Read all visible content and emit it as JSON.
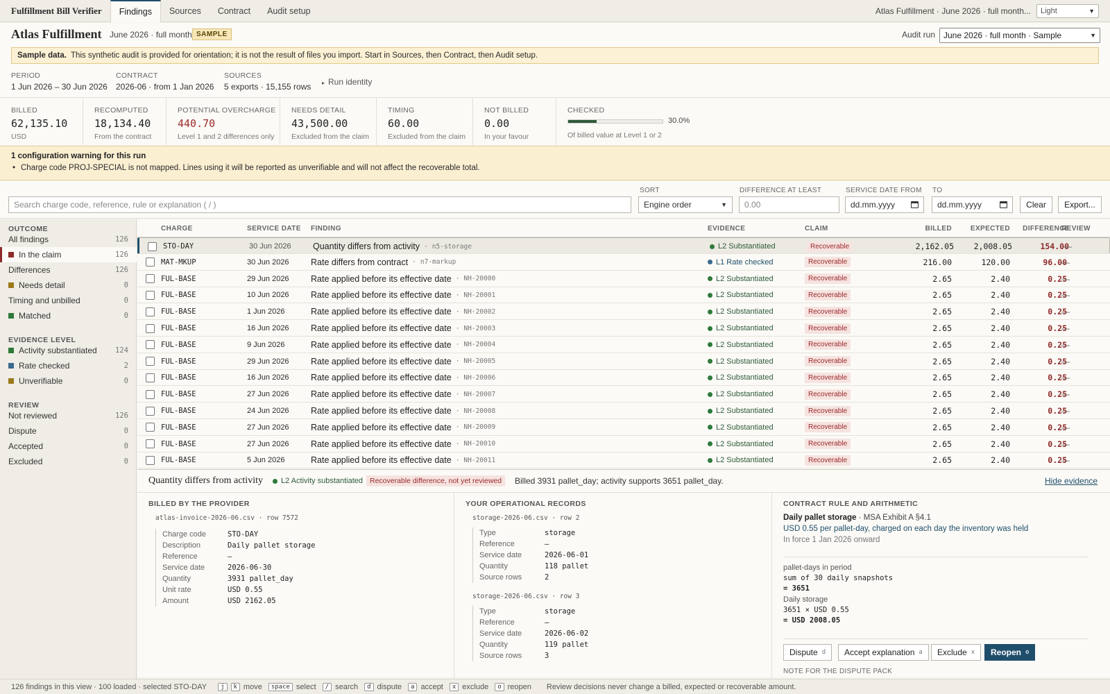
{
  "app": {
    "title": "Fulfillment Bill Verifier"
  },
  "nav": {
    "tabs": [
      "Findings",
      "Sources",
      "Contract",
      "Audit setup"
    ],
    "active": 0,
    "context": "Atlas Fulfillment · June 2026 · full month...",
    "theme": "Light"
  },
  "header": {
    "company": "Atlas Fulfillment",
    "period_short": "June 2026 · full month",
    "badge": "SAMPLE",
    "audit_run_label": "Audit run",
    "audit_run_value": "June 2026 · full month · Sample",
    "banner_bold": "Sample data.",
    "banner_text": "This synthetic audit is provided for orientation; it is not the result of files you import. Start in Sources, then Contract, then Audit setup.",
    "meta": [
      {
        "label": "PERIOD",
        "value": "1 Jun 2026 – 30 Jun 2026"
      },
      {
        "label": "CONTRACT",
        "value": "2026-06 · from 1 Jan 2026"
      },
      {
        "label": "SOURCES",
        "value": "5 exports · 15,155 rows"
      }
    ],
    "run_identity": "Run identity"
  },
  "kpis": [
    {
      "label": "BILLED",
      "value": "62,135.10",
      "sub": "USD"
    },
    {
      "label": "RECOMPUTED",
      "value": "18,134.40",
      "sub": "From the contract"
    },
    {
      "label": "POTENTIAL OVERCHARGE",
      "value": "440.70",
      "sub": "Level 1 and 2 differences only"
    },
    {
      "label": "NEEDS DETAIL",
      "value": "43,500.00",
      "sub": "Excluded from the claim"
    },
    {
      "label": "TIMING",
      "value": "60.00",
      "sub": "Excluded from the claim"
    },
    {
      "label": "NOT BILLED",
      "value": "0.00",
      "sub": "In your favour"
    },
    {
      "label": "CHECKED",
      "value": "30.0%",
      "sub": "Of billed value at Level 1 or 2",
      "fraction": 0.3
    }
  ],
  "warning": {
    "title": "1 configuration warning for this run",
    "item": "Charge code PROJ-SPECIAL is not mapped. Lines using it will be reported as unverifiable and will not affect the recoverable total."
  },
  "filters": {
    "search_placeholder": "Search charge code, reference, rule or explanation  ( / )",
    "sort_label": "SORT",
    "sort_value": "Engine order",
    "diff_label": "DIFFERENCE AT LEAST",
    "diff_placeholder": "0.00",
    "from_label": "SERVICE DATE FROM",
    "from_placeholder": "dd.mm.yyyy",
    "to_label": "TO",
    "to_placeholder": "dd.mm.yyyy",
    "clear": "Clear",
    "export": "Export..."
  },
  "sidebar": {
    "outcome_title": "OUTCOME",
    "outcome": [
      {
        "label": "All findings",
        "count": "126",
        "swatch": ""
      },
      {
        "label": "In the claim",
        "count": "126",
        "swatch": "#8e2a2a"
      },
      {
        "label": "Differences",
        "count": "126",
        "swatch": ""
      },
      {
        "label": "Needs detail",
        "count": "0",
        "swatch": "#9a7a1a"
      },
      {
        "label": "Timing and unbilled",
        "count": "0",
        "swatch": ""
      },
      {
        "label": "Matched",
        "count": "0",
        "swatch": "#2e7a3a"
      }
    ],
    "evidence_title": "EVIDENCE LEVEL",
    "evidence": [
      {
        "label": "Activity substantiated",
        "count": "124",
        "swatch": "#2e7a3a"
      },
      {
        "label": "Rate checked",
        "count": "2",
        "swatch": "#3a6a8e"
      },
      {
        "label": "Unverifiable",
        "count": "0",
        "swatch": "#9a7a1a"
      }
    ],
    "review_title": "REVIEW",
    "review": [
      {
        "label": "Not reviewed",
        "count": "126"
      },
      {
        "label": "Dispute",
        "count": "0"
      },
      {
        "label": "Accepted",
        "count": "0"
      },
      {
        "label": "Excluded",
        "count": "0"
      }
    ]
  },
  "table": {
    "headers": [
      "CHARGE",
      "SERVICE DATE",
      "FINDING",
      "EVIDENCE",
      "CLAIM",
      "BILLED",
      "EXPECTED",
      "DIFFERENCE",
      "REVIEW"
    ],
    "rows": [
      {
        "charge": "STO-DAY",
        "date": "30 Jun 2026",
        "finding": "Quantity differs from activity",
        "ref": "n5-storage",
        "evidence": "L2 Substantiated",
        "level": "L2",
        "claim": "Recoverable",
        "billed": "2,162.05",
        "expected": "2,008.05",
        "diff": "154.00",
        "review": "—"
      },
      {
        "charge": "MAT-MKUP",
        "date": "30 Jun 2026",
        "finding": "Rate differs from contract",
        "ref": "n7-markup",
        "evidence": "L1 Rate checked",
        "level": "L1",
        "claim": "Recoverable",
        "billed": "216.00",
        "expected": "120.00",
        "diff": "96.00",
        "review": "—"
      },
      {
        "charge": "FUL-BASE",
        "date": "29 Jun 2026",
        "finding": "Rate applied before its effective date",
        "ref": "NH-20000",
        "evidence": "L2 Substantiated",
        "level": "L2",
        "claim": "Recoverable",
        "billed": "2.65",
        "expected": "2.40",
        "diff": "0.25",
        "review": "—"
      },
      {
        "charge": "FUL-BASE",
        "date": "10 Jun 2026",
        "finding": "Rate applied before its effective date",
        "ref": "NH-20001",
        "evidence": "L2 Substantiated",
        "level": "L2",
        "claim": "Recoverable",
        "billed": "2.65",
        "expected": "2.40",
        "diff": "0.25",
        "review": "—"
      },
      {
        "charge": "FUL-BASE",
        "date": "1 Jun 2026",
        "finding": "Rate applied before its effective date",
        "ref": "NH-20002",
        "evidence": "L2 Substantiated",
        "level": "L2",
        "claim": "Recoverable",
        "billed": "2.65",
        "expected": "2.40",
        "diff": "0.25",
        "review": "—"
      },
      {
        "charge": "FUL-BASE",
        "date": "16 Jun 2026",
        "finding": "Rate applied before its effective date",
        "ref": "NH-20003",
        "evidence": "L2 Substantiated",
        "level": "L2",
        "claim": "Recoverable",
        "billed": "2.65",
        "expected": "2.40",
        "diff": "0.25",
        "review": "—"
      },
      {
        "charge": "FUL-BASE",
        "date": "9 Jun 2026",
        "finding": "Rate applied before its effective date",
        "ref": "NH-20004",
        "evidence": "L2 Substantiated",
        "level": "L2",
        "claim": "Recoverable",
        "billed": "2.65",
        "expected": "2.40",
        "diff": "0.25",
        "review": "—"
      },
      {
        "charge": "FUL-BASE",
        "date": "29 Jun 2026",
        "finding": "Rate applied before its effective date",
        "ref": "NH-20005",
        "evidence": "L2 Substantiated",
        "level": "L2",
        "claim": "Recoverable",
        "billed": "2.65",
        "expected": "2.40",
        "diff": "0.25",
        "review": "—"
      },
      {
        "charge": "FUL-BASE",
        "date": "16 Jun 2026",
        "finding": "Rate applied before its effective date",
        "ref": "NH-20006",
        "evidence": "L2 Substantiated",
        "level": "L2",
        "claim": "Recoverable",
        "billed": "2.65",
        "expected": "2.40",
        "diff": "0.25",
        "review": "—"
      },
      {
        "charge": "FUL-BASE",
        "date": "27 Jun 2026",
        "finding": "Rate applied before its effective date",
        "ref": "NH-20007",
        "evidence": "L2 Substantiated",
        "level": "L2",
        "claim": "Recoverable",
        "billed": "2.65",
        "expected": "2.40",
        "diff": "0.25",
        "review": "—"
      },
      {
        "charge": "FUL-BASE",
        "date": "24 Jun 2026",
        "finding": "Rate applied before its effective date",
        "ref": "NH-20008",
        "evidence": "L2 Substantiated",
        "level": "L2",
        "claim": "Recoverable",
        "billed": "2.65",
        "expected": "2.40",
        "diff": "0.25",
        "review": "—"
      },
      {
        "charge": "FUL-BASE",
        "date": "27 Jun 2026",
        "finding": "Rate applied before its effective date",
        "ref": "NH-20009",
        "evidence": "L2 Substantiated",
        "level": "L2",
        "claim": "Recoverable",
        "billed": "2.65",
        "expected": "2.40",
        "diff": "0.25",
        "review": "—"
      },
      {
        "charge": "FUL-BASE",
        "date": "27 Jun 2026",
        "finding": "Rate applied before its effective date",
        "ref": "NH-20010",
        "evidence": "L2 Substantiated",
        "level": "L2",
        "claim": "Recoverable",
        "billed": "2.65",
        "expected": "2.40",
        "diff": "0.25",
        "review": "—"
      },
      {
        "charge": "FUL-BASE",
        "date": "5 Jun 2026",
        "finding": "Rate applied before its effective date",
        "ref": "NH-20011",
        "evidence": "L2 Substantiated",
        "level": "L2",
        "claim": "Recoverable",
        "billed": "2.65",
        "expected": "2.40",
        "diff": "0.25",
        "review": "—"
      }
    ],
    "selected_index": 0
  },
  "panel": {
    "title": "Quantity differs from activity",
    "evidence": "L2 Activity substantiated",
    "claim": "Recoverable difference, not yet reviewed",
    "desc": "Billed 3931 pallet_day; activity supports 3651 pallet_day.",
    "hide": "Hide evidence",
    "billed_title": "BILLED BY THE PROVIDER",
    "billed_source": "atlas-invoice-2026-06.csv · row 7572",
    "billed_fields": [
      {
        "k": "Charge code",
        "v": "STO-DAY"
      },
      {
        "k": "Description",
        "v": "Daily pallet storage"
      },
      {
        "k": "Reference",
        "v": "—"
      },
      {
        "k": "Service date",
        "v": "2026-06-30"
      },
      {
        "k": "Quantity",
        "v": "3931 pallet_day"
      },
      {
        "k": "Unit rate",
        "v": "USD 0.55"
      },
      {
        "k": "Amount",
        "v": "USD 2162.05"
      }
    ],
    "ops_title": "YOUR OPERATIONAL RECORDS",
    "ops_records": [
      {
        "source": "storage-2026-06.csv · row 2",
        "fields": [
          {
            "k": "Type",
            "v": "storage"
          },
          {
            "k": "Reference",
            "v": "—"
          },
          {
            "k": "Service date",
            "v": "2026-06-01"
          },
          {
            "k": "Quantity",
            "v": "118 pallet"
          },
          {
            "k": "Source rows",
            "v": "2"
          }
        ]
      },
      {
        "source": "storage-2026-06.csv · row 3",
        "fields": [
          {
            "k": "Type",
            "v": "storage"
          },
          {
            "k": "Reference",
            "v": "—"
          },
          {
            "k": "Service date",
            "v": "2026-06-02"
          },
          {
            "k": "Quantity",
            "v": "119 pallet"
          },
          {
            "k": "Source rows",
            "v": "3"
          }
        ]
      }
    ],
    "rule_title": "CONTRACT RULE AND ARITHMETIC",
    "rule_name": "Daily pallet storage",
    "rule_ref": "· MSA Exhibit A §4.1",
    "rule_desc": "USD 0.55 per pallet-day, charged on each day the inventory was held",
    "rule_force": "In force 1 Jan 2026 onward",
    "calc1_label": "pallet-days in period",
    "calc1_line": "sum of 30 daily snapshots",
    "calc1_result": "= 3651",
    "calc2_label": "Daily storage",
    "calc2_line": "3651 × USD 0.55",
    "calc2_result": "= USD 2008.05",
    "actions": [
      {
        "label": "Dispute",
        "key": "d"
      },
      {
        "label": "Accept explanation",
        "key": "a"
      },
      {
        "label": "Exclude",
        "key": "x"
      },
      {
        "label": "Reopen",
        "key": "o"
      }
    ],
    "note_label": "NOTE FOR THE DISPUTE PACK"
  },
  "status": {
    "summary": "126 findings in this view · 100 loaded · selected STO-DAY",
    "keys": [
      {
        "k": "j",
        "t": ""
      },
      {
        "k": "k",
        "t": "move"
      },
      {
        "k": "space",
        "t": "select"
      },
      {
        "k": "/",
        "t": "search"
      },
      {
        "k": "d",
        "t": "dispute"
      },
      {
        "k": "a",
        "t": "accept"
      },
      {
        "k": "x",
        "t": "exclude"
      },
      {
        "k": "o",
        "t": "reopen"
      }
    ],
    "note": "Review decisions never change a billed, expected or recoverable amount."
  },
  "colors": {
    "accent": "#1f4e6b",
    "danger": "#8e2a2a",
    "ok": "#2e5a3a"
  }
}
